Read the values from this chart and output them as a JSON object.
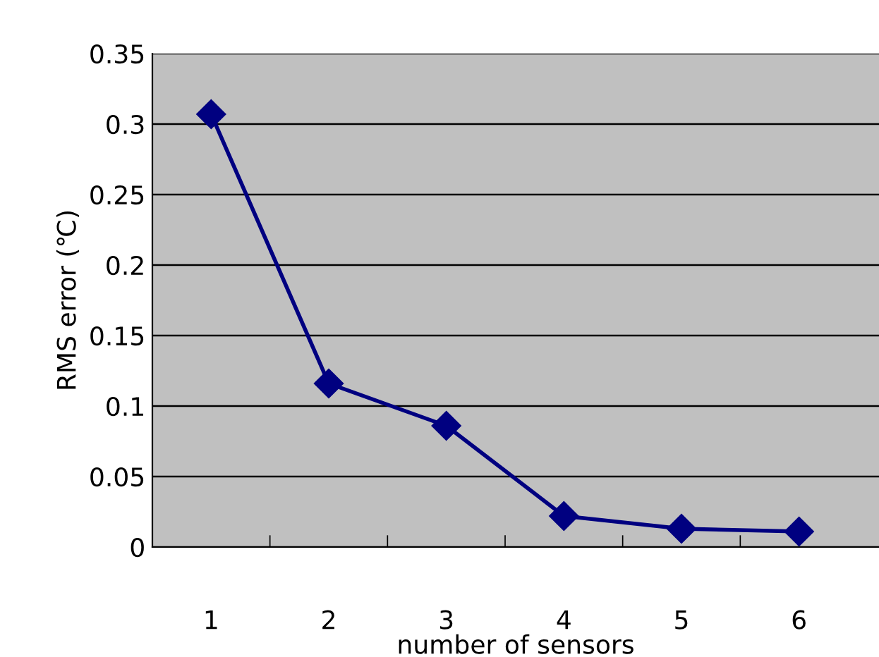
{
  "chart_data": {
    "type": "line",
    "xlabel": "number of sensors",
    "ylabel": "RMS error (℃)",
    "categories": [
      "1",
      "2",
      "3",
      "4",
      "5",
      "6"
    ],
    "series": [
      {
        "color": "#000080",
        "values": [
          0.307,
          0.116,
          0.086,
          0.022,
          0.013,
          0.011
        ]
      }
    ],
    "ylim": [
      0,
      0.35
    ],
    "yticks": [
      0,
      {
        "value": 0.05,
        "label": "0.05"
      },
      {
        "value": 0.1,
        "label": "0.1"
      },
      {
        "value": 0.15,
        "label": "0.15"
      },
      {
        "value": 0.2,
        "label": "0.2"
      },
      {
        "value": 0.25,
        "label": "0.25"
      },
      {
        "value": 0.3,
        "label": "0.3"
      },
      {
        "value": 0.35,
        "label": "0.35"
      }
    ],
    "grid": "y",
    "marker": "diamond",
    "line_style": "solid"
  }
}
